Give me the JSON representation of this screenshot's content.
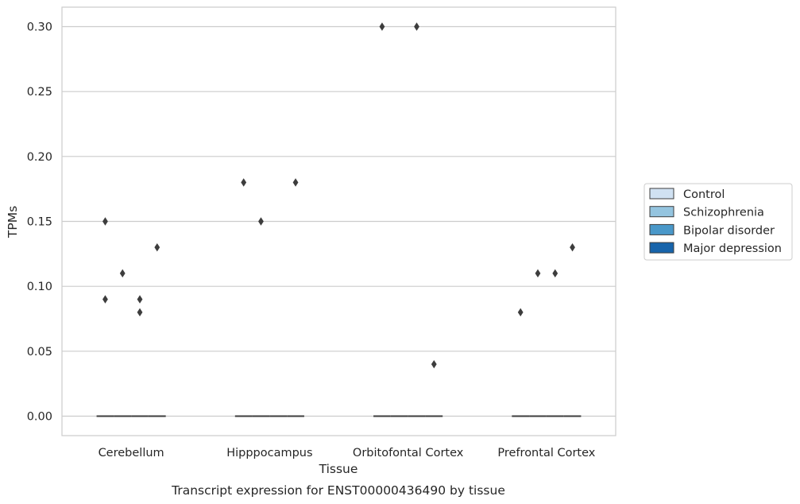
{
  "chart_data": {
    "type": "box",
    "categories": [
      "Cerebellum",
      "Hipppocampus",
      "Orbitofontal Cortex",
      "Prefrontal Cortex"
    ],
    "series": [
      {
        "name": "Control",
        "color": "#d0e1f2",
        "outliers": [
          [
            0.09,
            0.15
          ],
          [
            0.18
          ],
          [
            0.3
          ],
          [
            0.08
          ]
        ]
      },
      {
        "name": "Schizophrenia",
        "color": "#94c4df",
        "outliers": [
          [
            0.11
          ],
          [
            0.15
          ],
          [],
          [
            0.11
          ]
        ]
      },
      {
        "name": "Bipolar disorder",
        "color": "#4a98c9",
        "outliers": [
          [
            0.08,
            0.09
          ],
          [],
          [
            0.3
          ],
          [
            0.11
          ]
        ]
      },
      {
        "name": "Major depression",
        "color": "#1764ab",
        "outliers": [
          [
            0.13
          ],
          [
            0.18
          ],
          [
            0.04
          ],
          [
            0.13
          ]
        ]
      }
    ],
    "box_median": 0,
    "xlabel": "Tissue",
    "ylabel": "TPMs",
    "ylim": [
      -0.015,
      0.315
    ],
    "yticks": [
      0.0,
      0.05,
      0.1,
      0.15,
      0.2,
      0.25,
      0.3
    ],
    "ytick_labels": [
      "0.00",
      "0.05",
      "0.10",
      "0.15",
      "0.20",
      "0.25",
      "0.30"
    ],
    "grid": "horizontal",
    "legend_position": "right",
    "caption": "Transcript expression for ENST00000436490 by tissue"
  }
}
